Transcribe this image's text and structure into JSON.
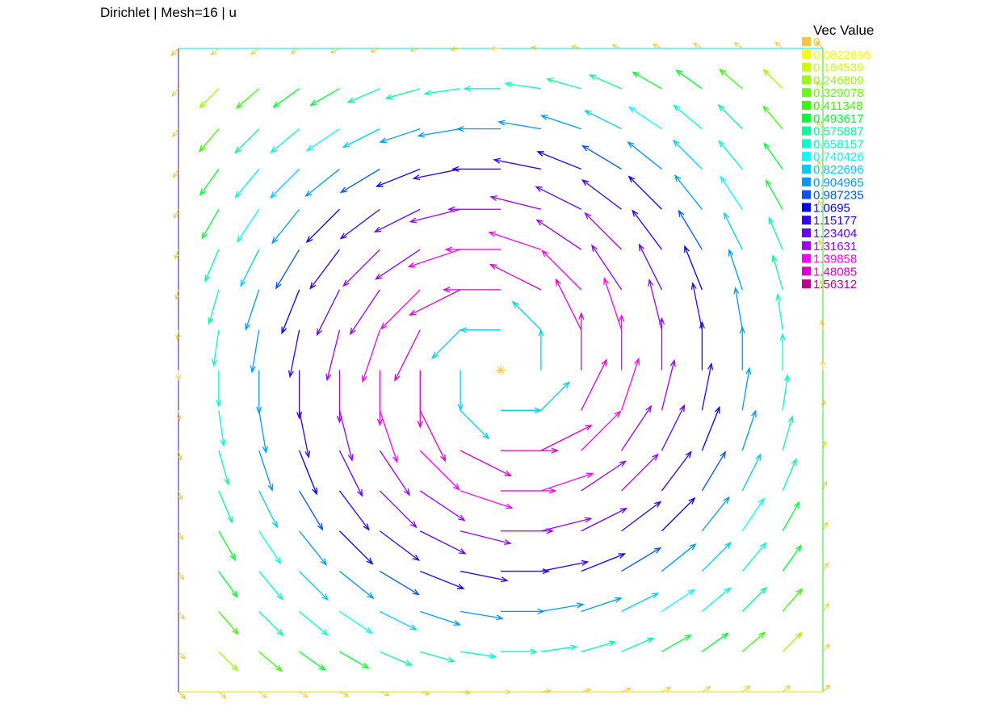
{
  "title": "Dirichlet | Mesh=16 | u",
  "chart_data": {
    "type": "vector_field",
    "domain": {
      "xlim": [
        0,
        1
      ],
      "ylim": [
        0,
        1
      ]
    },
    "mesh_subdivisions": 16,
    "boundary_condition": "Dirichlet",
    "field": "u",
    "description_of_field": "counter-clockwise rotational vortex centred at (0.5, 0.5), magnitude zero on boundary and at centre, peak ~1.56 in between",
    "magnitude_range": [
      0,
      1.56312
    ],
    "legend": {
      "title": "Vec Value",
      "placement": "top-right",
      "entries": [
        {
          "label": "0",
          "color": "#f5c83c"
        },
        {
          "label": "0.0822696",
          "color": "#ffff00"
        },
        {
          "label": "0.164539",
          "color": "#ccff00"
        },
        {
          "label": "0.246809",
          "color": "#99ff00"
        },
        {
          "label": "0.329078",
          "color": "#66ff00"
        },
        {
          "label": "0.411348",
          "color": "#33ff00"
        },
        {
          "label": "0.493617",
          "color": "#00ff33"
        },
        {
          "label": "0.575887",
          "color": "#00ff99"
        },
        {
          "label": "0.658157",
          "color": "#00ffcc"
        },
        {
          "label": "0.740426",
          "color": "#00ffff"
        },
        {
          "label": "0.822696",
          "color": "#00ccff"
        },
        {
          "label": "0.904965",
          "color": "#0099ff"
        },
        {
          "label": "0.987235",
          "color": "#0055ff"
        },
        {
          "label": "1.0695",
          "color": "#0000ff"
        },
        {
          "label": "1.15177",
          "color": "#3300ff"
        },
        {
          "label": "1.23404",
          "color": "#6600ff"
        },
        {
          "label": "1.31631",
          "color": "#9900ff"
        },
        {
          "label": "1.39858",
          "color": "#ff00ff"
        },
        {
          "label": "1.48085",
          "color": "#dd00cc"
        },
        {
          "label": "1.56312",
          "color": "#bb0088"
        }
      ]
    }
  }
}
